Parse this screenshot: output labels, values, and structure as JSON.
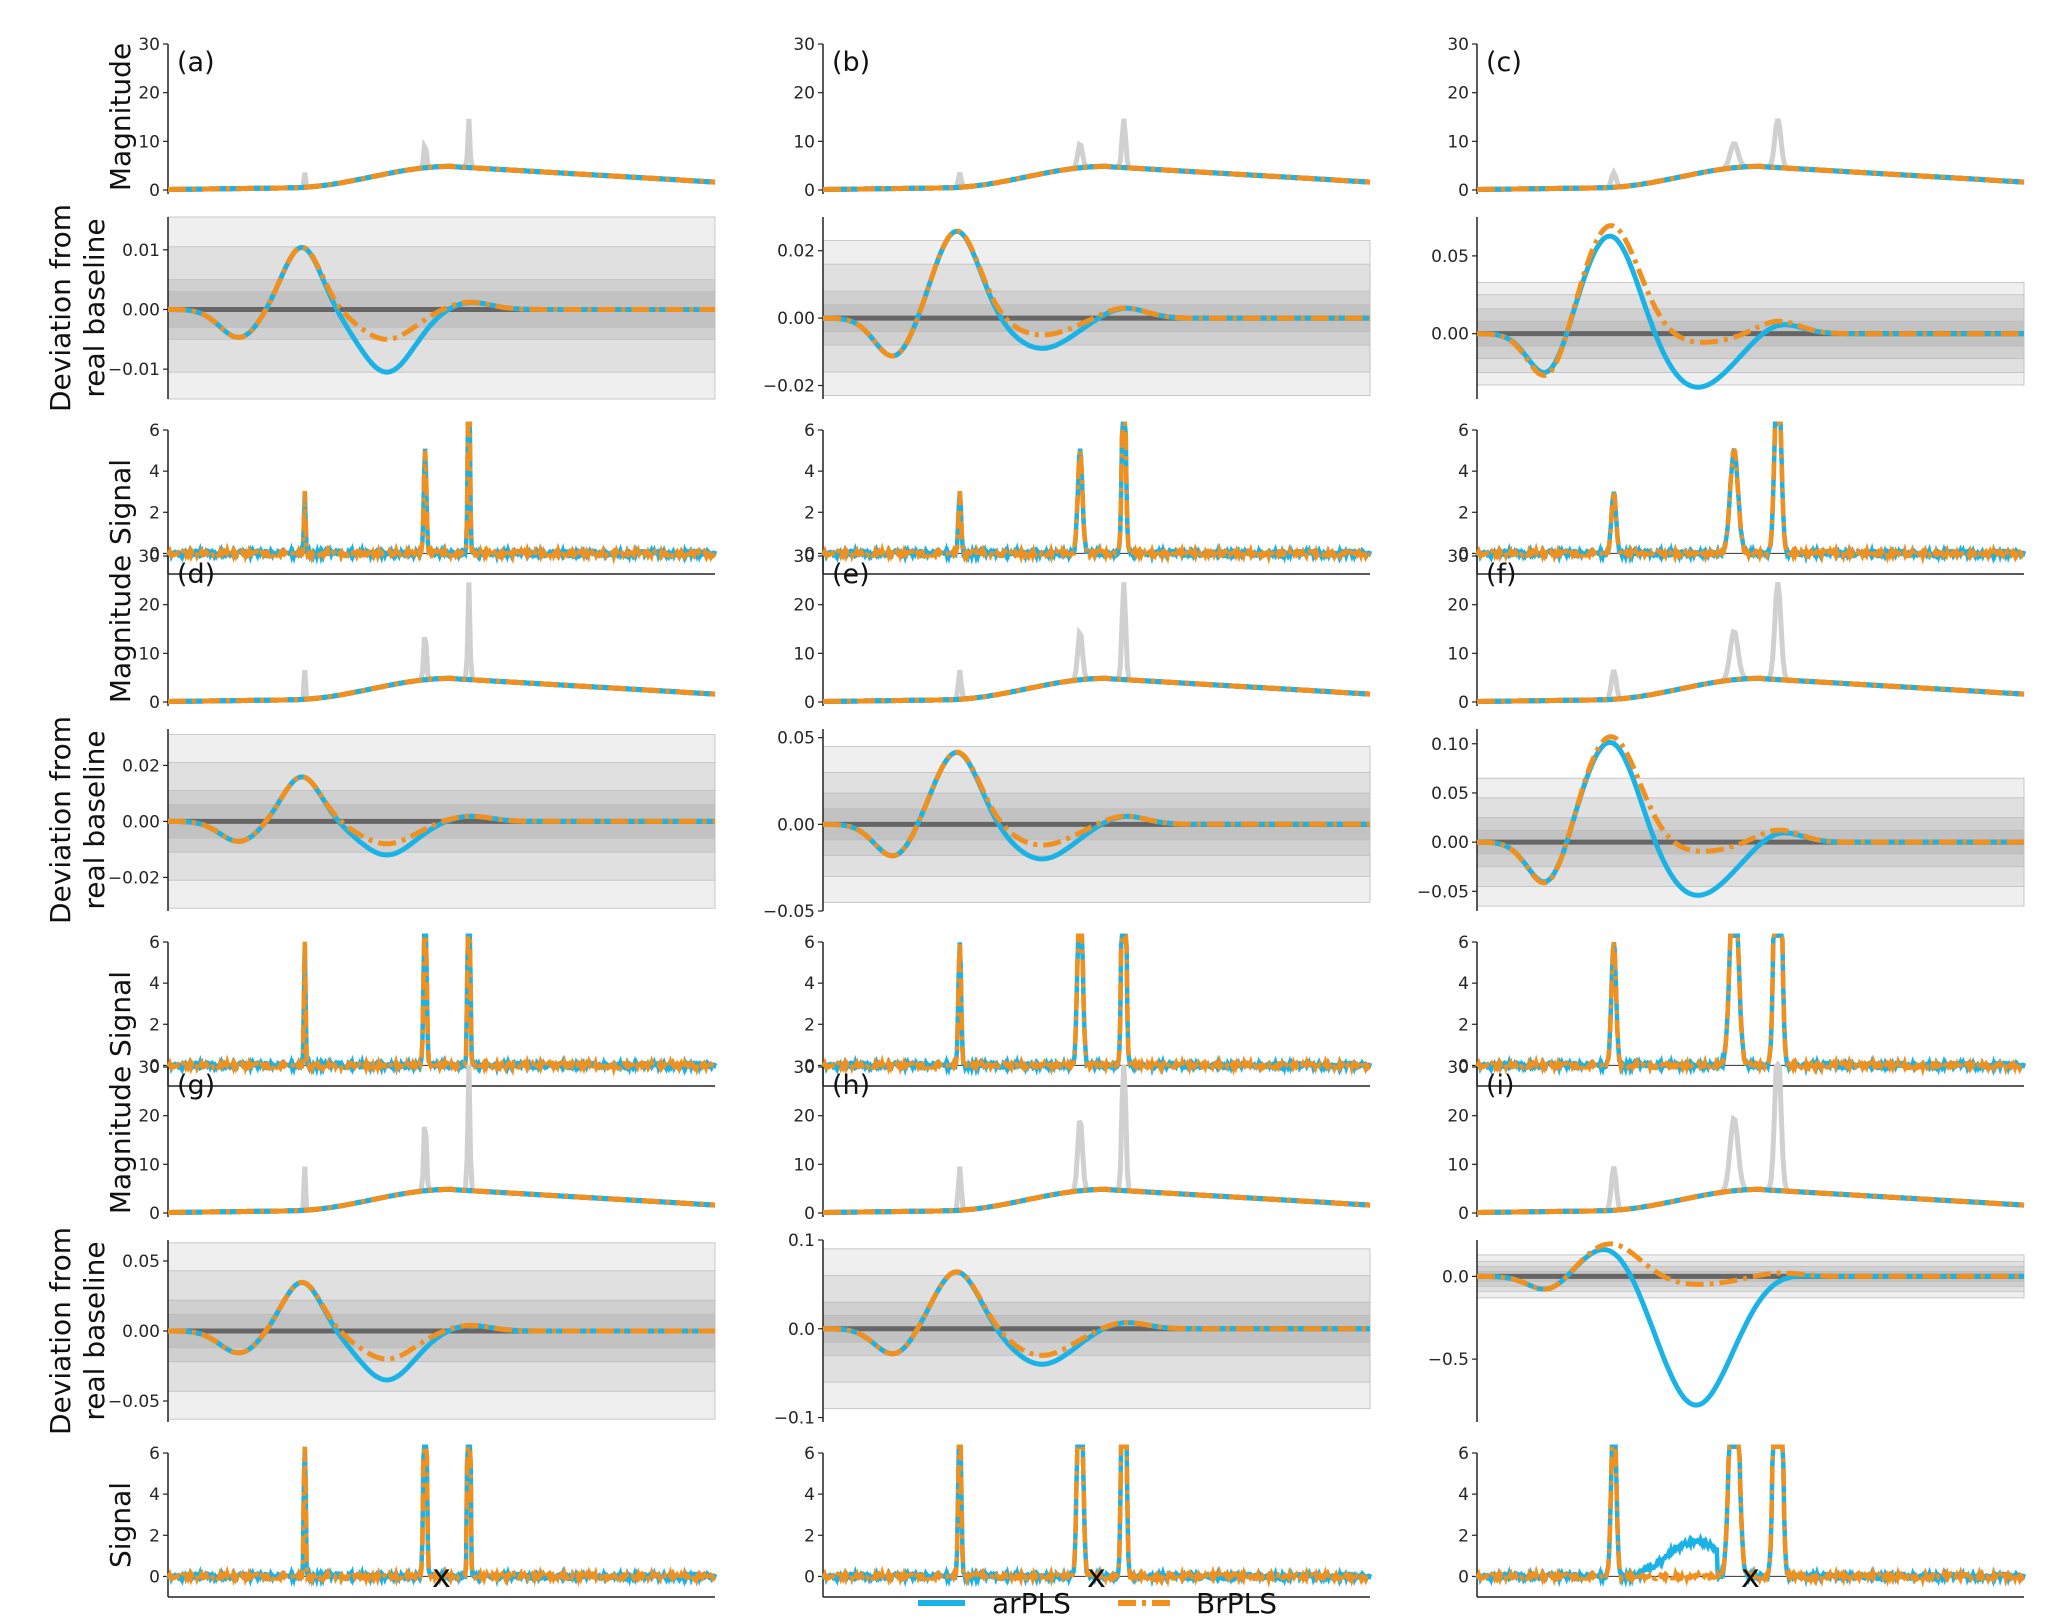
{
  "figure": {
    "legend": [
      {
        "label": "arPLS",
        "color": "#1bb3e6",
        "style": "solid"
      },
      {
        "label": "BrPLS",
        "color": "#f0901e",
        "style": "dashdot"
      }
    ],
    "row_labels": {
      "magnitude": "Magnitude",
      "deviation_line1": "Deviation from",
      "deviation_line2": "real baseline",
      "signal": "Signal"
    },
    "x_label": "x"
  },
  "chart_data": [
    {
      "panel": "(a)",
      "type": "line",
      "peak_height": 10,
      "peak_width": 0.4,
      "deviation": {
        "yticks": [
          "0.01",
          "0.00",
          "−0.01"
        ],
        "tick_values": [
          0.01,
          0,
          -0.01
        ],
        "ylim": [
          -0.015,
          0.0155
        ],
        "bands": [
          0.003,
          0.005,
          0.0105,
          0.0155
        ],
        "arpls": {
          "pos": 0.0105,
          "neg": -0.0105
        },
        "brpls": {
          "pos": 0.0105,
          "neg": -0.005
        }
      }
    },
    {
      "panel": "(b)",
      "type": "line",
      "peak_height": 10,
      "peak_width": 0.7,
      "deviation": {
        "yticks": [
          "0.02",
          "0.00",
          "−0.02"
        ],
        "tick_values": [
          0.02,
          0,
          -0.02
        ],
        "ylim": [
          -0.024,
          0.03
        ],
        "bands": [
          0.004,
          0.008,
          0.016,
          0.023
        ],
        "arpls": {
          "pos": 0.026,
          "neg": -0.009
        },
        "brpls": {
          "pos": 0.026,
          "neg": -0.005
        }
      }
    },
    {
      "panel": "(c)",
      "type": "line",
      "peak_height": 10,
      "peak_width": 1.2,
      "deviation": {
        "yticks": [
          "0.05",
          "0.00"
        ],
        "tick_values": [
          0.05,
          0
        ],
        "ylim": [
          -0.042,
          0.075
        ],
        "bands": [
          0.008,
          0.016,
          0.025,
          0.033
        ],
        "arpls": {
          "pos": 0.065,
          "neg": -0.035
        },
        "brpls": {
          "pos": 0.07,
          "neg": -0.006
        }
      }
    },
    {
      "panel": "(d)",
      "type": "line",
      "peak_height": 20,
      "peak_width": 0.4,
      "deviation": {
        "yticks": [
          "0.02",
          "0.00",
          "−0.02"
        ],
        "tick_values": [
          0.02,
          0,
          -0.02
        ],
        "ylim": [
          -0.032,
          0.033
        ],
        "bands": [
          0.006,
          0.011,
          0.021,
          0.031
        ],
        "arpls": {
          "pos": 0.016,
          "neg": -0.012
        },
        "brpls": {
          "pos": 0.016,
          "neg": -0.008
        }
      }
    },
    {
      "panel": "(e)",
      "type": "line",
      "peak_height": 20,
      "peak_width": 0.7,
      "deviation": {
        "yticks": [
          "0.05",
          "0.00",
          "−0.05"
        ],
        "tick_values": [
          0.05,
          0,
          -0.05
        ],
        "ylim": [
          -0.05,
          0.055
        ],
        "bands": [
          0.009,
          0.018,
          0.03,
          0.045
        ],
        "arpls": {
          "pos": 0.042,
          "neg": -0.02
        },
        "brpls": {
          "pos": 0.042,
          "neg": -0.012
        }
      }
    },
    {
      "panel": "(f)",
      "type": "line",
      "peak_height": 20,
      "peak_width": 1.2,
      "deviation": {
        "yticks": [
          "0.10",
          "0.05",
          "0.00",
          "−0.05"
        ],
        "tick_values": [
          0.1,
          0.05,
          0,
          -0.05
        ],
        "ylim": [
          -0.07,
          0.115
        ],
        "bands": [
          0.012,
          0.025,
          0.045,
          0.065
        ],
        "arpls": {
          "pos": 0.105,
          "neg": -0.055
        },
        "brpls": {
          "pos": 0.108,
          "neg": -0.01
        }
      }
    },
    {
      "panel": "(g)",
      "type": "line",
      "peak_height": 30,
      "peak_width": 0.4,
      "deviation": {
        "yticks": [
          "0.05",
          "0.00",
          "−0.05"
        ],
        "tick_values": [
          0.05,
          0,
          -0.05
        ],
        "ylim": [
          -0.065,
          0.065
        ],
        "bands": [
          0.012,
          0.022,
          0.043,
          0.063
        ],
        "arpls": {
          "pos": 0.035,
          "neg": -0.035
        },
        "brpls": {
          "pos": 0.035,
          "neg": -0.02
        }
      }
    },
    {
      "panel": "(h)",
      "type": "line",
      "peak_height": 30,
      "peak_width": 0.7,
      "deviation": {
        "yticks": [
          "0.1",
          "0.0",
          "−0.1"
        ],
        "tick_values": [
          0.1,
          0,
          -0.1
        ],
        "ylim": [
          -0.105,
          0.1
        ],
        "bands": [
          0.015,
          0.03,
          0.06,
          0.09
        ],
        "arpls": {
          "pos": 0.065,
          "neg": -0.04
        },
        "brpls": {
          "pos": 0.065,
          "neg": -0.03
        }
      }
    },
    {
      "panel": "(i)",
      "type": "line",
      "peak_height": 30,
      "peak_width": 1.2,
      "deviation": {
        "yticks": [
          "0.0",
          "−0.5"
        ],
        "tick_values": [
          0,
          -0.5
        ],
        "ylim": [
          -0.88,
          0.22
        ],
        "bands": [
          0.03,
          0.06,
          0.09,
          0.13
        ],
        "arpls": {
          "pos": 0.2,
          "neg": -0.78
        },
        "brpls": {
          "pos": 0.2,
          "neg": -0.05
        }
      }
    }
  ],
  "shared_axes": {
    "magnitude": {
      "yticks": [
        "0",
        "10",
        "20",
        "30"
      ],
      "tick_values": [
        0,
        10,
        20,
        30
      ],
      "ylim": [
        0,
        30
      ]
    },
    "signal": {
      "yticks": [
        "0",
        "2",
        "4",
        "6"
      ],
      "tick_values": [
        0,
        2,
        4,
        6
      ],
      "ylim": [
        -1,
        6
      ]
    },
    "peak_positions": [
      0.25,
      0.47,
      0.55
    ],
    "peak_height_ratios": [
      0.3,
      0.5,
      1.0
    ],
    "baseline_max": 4.8
  },
  "colors": {
    "arpls": "#1bb3e6",
    "brpls": "#f0901e",
    "observed": "#d0d0d0",
    "truth": "#666666"
  }
}
